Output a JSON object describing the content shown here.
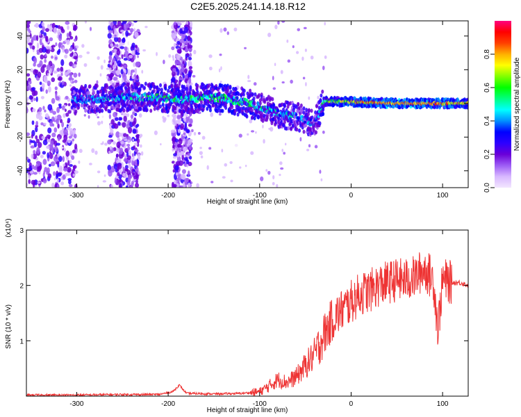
{
  "title": "C2E5.2025.241.14.18.R12",
  "chart_data": [
    {
      "type": "heatmap",
      "xlabel": "Height of straight line (km)",
      "ylabel": "Frequency (Hz)",
      "xlim": [
        -355,
        128
      ],
      "ylim": [
        -50,
        49
      ],
      "x_ticks": [
        -300,
        -200,
        -100,
        0,
        100
      ],
      "y_ticks": [
        -40,
        -20,
        0,
        20,
        40
      ],
      "colorbar": {
        "label": "Normalized spectral amplitude",
        "range": [
          0,
          1
        ],
        "ticks": [
          "0.0",
          "0.2",
          "0.4",
          "0.6",
          "0.8"
        ],
        "colors": [
          "#f2e6ff",
          "#d8b8ff",
          "#9d5cf5",
          "#6a00d8",
          "#2d00ff",
          "#0000ff",
          "#0090ff",
          "#00ffff",
          "#00ff80",
          "#00ff00",
          "#80ff00",
          "#ffff00",
          "#ffb000",
          "#ff4000",
          "#ff0000",
          "#ff0080"
        ]
      },
      "ridge": [
        {
          "x": -300,
          "f": 2,
          "amp": 0.35
        },
        {
          "x": -270,
          "f": 3,
          "amp": 0.4
        },
        {
          "x": -230,
          "f": 4,
          "amp": 0.45
        },
        {
          "x": -200,
          "f": 3,
          "amp": 0.5
        },
        {
          "x": -180,
          "f": 2,
          "amp": 0.45
        },
        {
          "x": -160,
          "f": 4,
          "amp": 0.5
        },
        {
          "x": -140,
          "f": 3,
          "amp": 0.55
        },
        {
          "x": -120,
          "f": 1,
          "amp": 0.5
        },
        {
          "x": -100,
          "f": -2,
          "amp": 0.45
        },
        {
          "x": -80,
          "f": -6,
          "amp": 0.45
        },
        {
          "x": -60,
          "f": -8,
          "amp": 0.4
        },
        {
          "x": -40,
          "f": -12,
          "amp": 0.3
        },
        {
          "x": -30,
          "f": 1,
          "amp": 0.55
        },
        {
          "x": 0,
          "f": 1,
          "amp": 0.75
        },
        {
          "x": 50,
          "f": 0,
          "amp": 0.85
        },
        {
          "x": 100,
          "f": 0,
          "amp": 0.8
        },
        {
          "x": 125,
          "f": 0,
          "amp": 0.7
        }
      ],
      "noise_bands": [
        [
          -355,
          -300
        ],
        [
          -265,
          -232
        ],
        [
          -195,
          -175
        ]
      ]
    },
    {
      "type": "line",
      "xlabel": "Height of straight line (km)",
      "ylabel": "SNR (10 * v/v)",
      "y_scale_label": "(x10⁴)",
      "xlim": [
        -355,
        128
      ],
      "ylim": [
        0,
        3
      ],
      "x_ticks": [
        -300,
        -200,
        -100,
        0,
        100
      ],
      "y_ticks": [
        1,
        2,
        3
      ],
      "color": "#ee3333",
      "x": [
        -355,
        -300,
        -250,
        -210,
        -195,
        -188,
        -180,
        -150,
        -120,
        -100,
        -90,
        -80,
        -70,
        -60,
        -50,
        -40,
        -30,
        -20,
        -10,
        0,
        10,
        20,
        30,
        40,
        50,
        60,
        70,
        80,
        90,
        95,
        100,
        110,
        120,
        128
      ],
      "y": [
        0.02,
        0.02,
        0.03,
        0.03,
        0.08,
        0.2,
        0.05,
        0.04,
        0.05,
        0.08,
        0.18,
        0.3,
        0.25,
        0.35,
        0.55,
        0.75,
        1.1,
        1.4,
        1.55,
        1.7,
        1.85,
        1.9,
        2.0,
        2.05,
        2.1,
        2.1,
        2.15,
        2.3,
        2.1,
        1.2,
        2.1,
        2.05,
        2.05,
        2.0
      ]
    }
  ]
}
